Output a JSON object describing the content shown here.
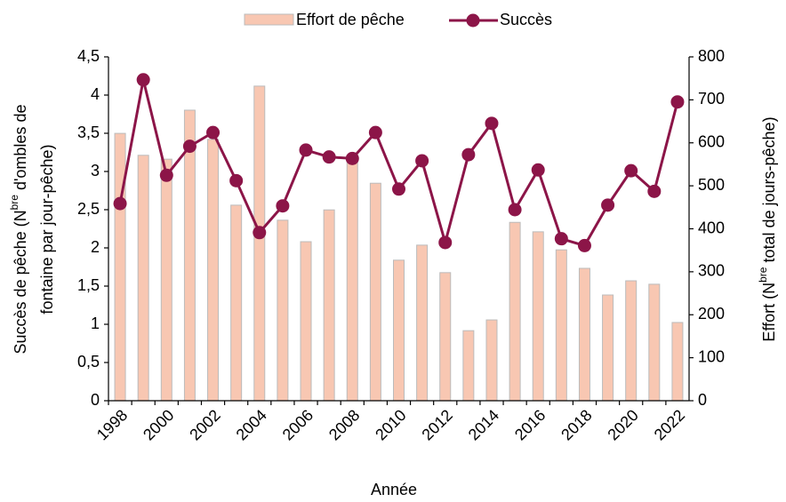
{
  "chart_data": {
    "type": "bar_line",
    "x_label": "Année",
    "y_label": [
      "Succès de pêche  (N",
      "bre",
      " d'ombles de",
      "fontaine par jour-pêche)"
    ],
    "y2_label": [
      "Effort (N",
      "bre",
      " total de jours-pêche)"
    ],
    "categories": [
      "1998",
      null,
      "2000",
      null,
      "2002",
      null,
      "2004",
      null,
      "2006",
      null,
      "2008",
      null,
      "2010",
      null,
      "2012",
      null,
      "2014",
      null,
      "2016",
      null,
      "2018",
      null,
      "2020",
      null,
      "2022"
    ],
    "series": [
      {
        "name": "Effort de pêche",
        "type": "bar",
        "axis": "y2",
        "color": "#f8c7b2",
        "values": [
          622,
          571,
          562,
          676,
          608,
          455,
          732,
          420,
          370,
          444,
          568,
          506,
          327,
          362,
          298,
          163,
          188,
          415,
          393,
          351,
          308,
          246,
          279,
          271,
          182
        ]
      },
      {
        "name": "Succès",
        "type": "line",
        "axis": "y",
        "color": "#8c1548",
        "values": [
          2.58,
          4.2,
          2.95,
          3.33,
          3.51,
          2.88,
          2.2,
          2.55,
          3.28,
          3.19,
          3.17,
          3.51,
          2.77,
          3.14,
          2.07,
          3.22,
          3.63,
          2.5,
          3.02,
          2.12,
          2.03,
          2.56,
          3.01,
          2.74,
          3.91
        ]
      }
    ],
    "ylim": [
      0,
      4.5
    ],
    "yticks": [
      0,
      {
        "value": 0.5,
        "label": "0,5"
      },
      1,
      {
        "value": 1.5,
        "label": "1,5"
      },
      2,
      {
        "value": 2.5,
        "label": "2,5"
      },
      3,
      {
        "value": 3.5,
        "label": "3,5"
      },
      4,
      {
        "value": 4.5,
        "label": "4,5"
      }
    ],
    "y2lim": [
      0,
      800
    ],
    "y2ticks": [
      0,
      100,
      200,
      300,
      400,
      500,
      600,
      700,
      800
    ],
    "legend": "top"
  }
}
